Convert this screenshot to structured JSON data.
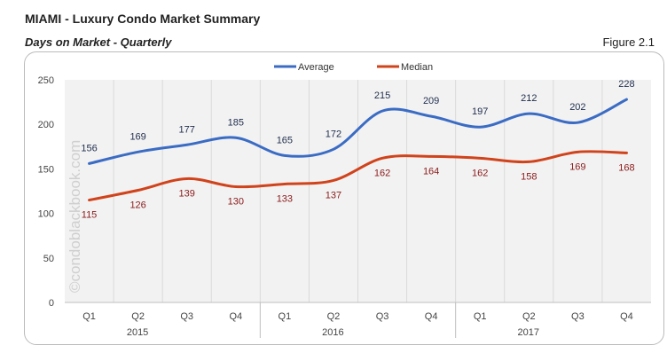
{
  "header": {
    "title": "MIAMI - Luxury Condo Market Summary",
    "subtitle": "Days on Market - Quarterly",
    "figure": "Figure 2.1"
  },
  "watermark": "©condoblackbook.com",
  "chart_data": {
    "type": "line",
    "title": "Days on Market - Quarterly",
    "categories": [
      "Q1",
      "Q2",
      "Q3",
      "Q4",
      "Q1",
      "Q2",
      "Q3",
      "Q4",
      "Q1",
      "Q2",
      "Q3",
      "Q4"
    ],
    "year_labels": [
      "2015",
      "2016",
      "2017"
    ],
    "ylim": [
      0,
      250
    ],
    "yticks": [
      0,
      50,
      100,
      150,
      200,
      250
    ],
    "grid": true,
    "legend": "top",
    "smooth": true,
    "series": [
      {
        "name": "Average",
        "color": "#3b6cc4",
        "label_color": "#1f2d4d",
        "values": [
          156,
          169,
          177,
          185,
          165,
          172,
          215,
          209,
          197,
          212,
          202,
          228
        ]
      },
      {
        "name": "Median",
        "color": "#d0431b",
        "label_color": "#8b1a1a",
        "values": [
          115,
          126,
          139,
          130,
          133,
          137,
          162,
          164,
          162,
          158,
          169,
          168
        ]
      }
    ]
  }
}
